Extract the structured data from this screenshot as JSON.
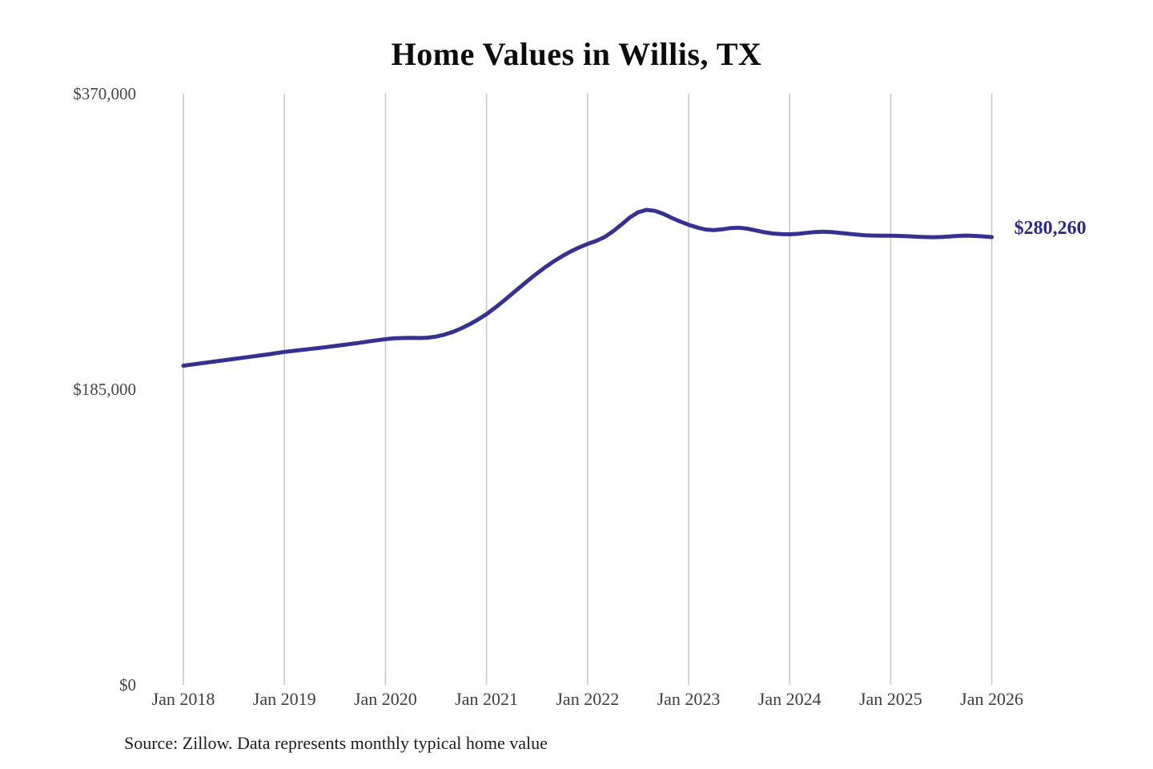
{
  "title": "Home Values in Willis, TX",
  "annotation": {
    "latest_value_label": "$280,260"
  },
  "source": "Source: Zillow. Data represents monthly typical home value",
  "chart_data": {
    "type": "line",
    "title": "Home Values in Willis, TX",
    "series_name": "Monthly typical home value",
    "unit": "USD",
    "frequency": "monthly",
    "x_start": "Jan 2018",
    "x_end": "Jan 2026",
    "xlabel": "",
    "ylabel": "",
    "ylim": [
      0,
      370000
    ],
    "grid": "vertical-only",
    "legend": "none",
    "line_color": "#36318f",
    "grid_color": "#c9c9c9",
    "annotation_color": "#2d2a80",
    "y_ticks": [
      {
        "label": "$0",
        "value": 0
      },
      {
        "label": "$185,000",
        "value": 185000
      },
      {
        "label": "$370,000",
        "value": 370000
      }
    ],
    "x_ticks": [
      "Jan 2018",
      "Jan 2019",
      "Jan 2020",
      "Jan 2021",
      "Jan 2022",
      "Jan 2023",
      "Jan 2024",
      "Jan 2025",
      "Jan 2026"
    ],
    "latest_value": 280260,
    "values": [
      199800,
      200500,
      201200,
      201900,
      202600,
      203300,
      204000,
      204700,
      205400,
      206100,
      206800,
      207600,
      208400,
      209000,
      209600,
      210200,
      210800,
      211400,
      212100,
      212800,
      213500,
      214200,
      215000,
      215700,
      216400,
      216900,
      217100,
      217200,
      217100,
      217300,
      218000,
      219200,
      220900,
      223100,
      225700,
      228700,
      232000,
      236000,
      240200,
      244600,
      249000,
      253400,
      257600,
      261500,
      265100,
      268400,
      271300,
      273800,
      276000,
      277800,
      280200,
      283800,
      288000,
      292500,
      295800,
      297300,
      296700,
      294800,
      292300,
      290000,
      288000,
      286300,
      285000,
      284600,
      285100,
      285900,
      286100,
      285500,
      284400,
      283300,
      282500,
      282100,
      282000,
      282300,
      282900,
      283400,
      283600,
      283400,
      282900,
      282300,
      281800,
      281400,
      281200,
      281100,
      281100,
      281000,
      280800,
      280500,
      280300,
      280200,
      280300,
      280600,
      281000,
      281200,
      281000,
      280700,
      280260
    ]
  }
}
